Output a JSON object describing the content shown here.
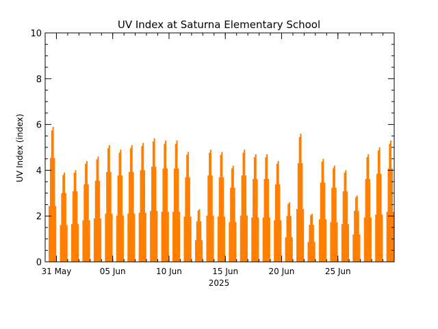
{
  "chart_data": {
    "type": "bar",
    "title": "UV Index at Saturna Elementary School",
    "ylabel": "UV Index (index)",
    "xlabel": "2025",
    "ylim": [
      0,
      10
    ],
    "yticks": [
      0,
      2,
      4,
      6,
      8,
      10
    ],
    "x_range": [
      "2025-05-30",
      "2025-06-30"
    ],
    "xticks": [
      {
        "date": "2025-05-31",
        "label": "31 May"
      },
      {
        "date": "2025-06-05",
        "label": "05 Jun"
      },
      {
        "date": "2025-06-10",
        "label": "10 Jun"
      },
      {
        "date": "2025-06-15",
        "label": "15 Jun"
      },
      {
        "date": "2025-06-20",
        "label": "20 Jun"
      },
      {
        "date": "2025-06-25",
        "label": "25 Jun"
      }
    ],
    "series": [
      {
        "color": "#ff7f00",
        "daily_peaks": [
          {
            "date": "2025-05-30",
            "peak": 5.9
          },
          {
            "date": "2025-05-31",
            "peak": 3.9
          },
          {
            "date": "2025-06-01",
            "peak": 4.0
          },
          {
            "date": "2025-06-02",
            "peak": 4.4
          },
          {
            "date": "2025-06-03",
            "peak": 4.6
          },
          {
            "date": "2025-06-04",
            "peak": 5.1
          },
          {
            "date": "2025-06-05",
            "peak": 4.9
          },
          {
            "date": "2025-06-06",
            "peak": 5.1
          },
          {
            "date": "2025-06-07",
            "peak": 5.2
          },
          {
            "date": "2025-06-08",
            "peak": 5.4
          },
          {
            "date": "2025-06-09",
            "peak": 5.3
          },
          {
            "date": "2025-06-10",
            "peak": 5.3
          },
          {
            "date": "2025-06-11",
            "peak": 4.8
          },
          {
            "date": "2025-06-12",
            "peak": 2.3
          },
          {
            "date": "2025-06-13",
            "peak": 4.9
          },
          {
            "date": "2025-06-14",
            "peak": 4.8
          },
          {
            "date": "2025-06-15",
            "peak": 4.2
          },
          {
            "date": "2025-06-16",
            "peak": 4.9
          },
          {
            "date": "2025-06-17",
            "peak": 4.7
          },
          {
            "date": "2025-06-18",
            "peak": 4.7
          },
          {
            "date": "2025-06-19",
            "peak": 4.4
          },
          {
            "date": "2025-06-20",
            "peak": 2.6
          },
          {
            "date": "2025-06-21",
            "peak": 5.6
          },
          {
            "date": "2025-06-22",
            "peak": 2.1
          },
          {
            "date": "2025-06-23",
            "peak": 4.5
          },
          {
            "date": "2025-06-24",
            "peak": 4.2
          },
          {
            "date": "2025-06-25",
            "peak": 4.0
          },
          {
            "date": "2025-06-26",
            "peak": 2.9
          },
          {
            "date": "2025-06-27",
            "peak": 4.7
          },
          {
            "date": "2025-06-28",
            "peak": 5.0
          },
          {
            "date": "2025-06-29",
            "peak": 5.3
          }
        ]
      }
    ]
  }
}
